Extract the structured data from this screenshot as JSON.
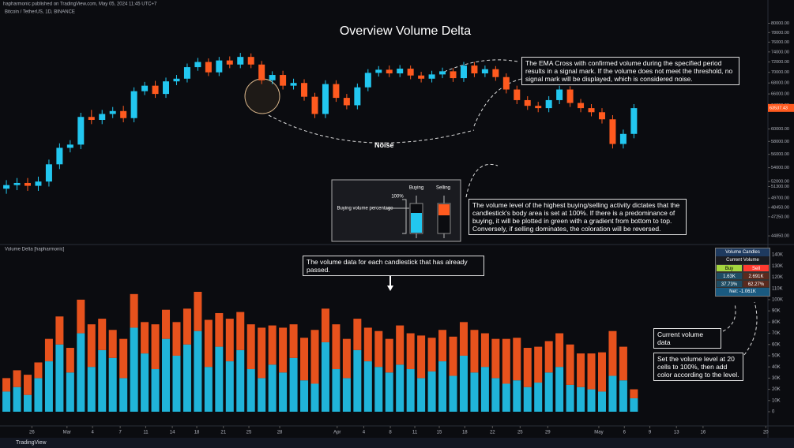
{
  "header": {
    "publisher": "hapharmonic published on TradingView.com, May 05, 2024 11:45 UTC+7"
  },
  "chart_data": [
    {
      "type": "candlestick",
      "title": "Overview Volume Delta",
      "subtitle": "Bitcoin / TetherUS, 1D, BINANCE",
      "up_color": "#22c7f0",
      "down_color": "#ff5a1f",
      "log_scale": true,
      "xlim": [
        -0.6,
        71.6
      ],
      "ylim": [
        44000,
        82000
      ],
      "yticks": [
        {
          "value": 80000,
          "label": "80000.00"
        },
        {
          "value": 78000,
          "label": "78000.00"
        },
        {
          "value": 76000,
          "label": "76000.00"
        },
        {
          "value": 74000,
          "label": "74000.00"
        },
        {
          "value": 72000,
          "label": "72000.00"
        },
        {
          "value": 70000,
          "label": "70000.00"
        },
        {
          "value": 68000,
          "label": "68000.00"
        },
        {
          "value": 66000,
          "label": "66000.00"
        },
        {
          "value": 64000,
          "label": "64000.00"
        },
        {
          "value": 60000,
          "label": "60000.00"
        },
        {
          "value": 58000,
          "label": "58000.00"
        },
        {
          "value": 56000,
          "label": "56000.00"
        },
        {
          "value": 54000,
          "label": "54000.00"
        },
        {
          "value": 52000,
          "label": "52000.00"
        },
        {
          "value": 51300,
          "label": "51300.00"
        },
        {
          "value": 49700,
          "label": "49700.00"
        },
        {
          "value": 48450,
          "label": "48450.00"
        },
        {
          "value": 47250,
          "label": "47250.00"
        },
        {
          "value": 44850,
          "label": "44850.00"
        }
      ],
      "last_price": 63537.43,
      "open": [
        51000,
        51500,
        51800,
        51400,
        52000,
        54500,
        57000,
        57500,
        62000,
        61500,
        62500,
        63000,
        61800,
        66500,
        67500,
        66000,
        68300,
        68800,
        71000,
        72000,
        70000,
        72300,
        71500,
        73000,
        71500,
        68500,
        69500,
        67500,
        68000,
        65500,
        62500,
        67800,
        65300,
        64000,
        67200,
        69900,
        70500,
        69800,
        70700,
        69400,
        68800,
        69600,
        70200,
        68900,
        71300,
        69800,
        70600,
        69100,
        66800,
        64900,
        63900,
        63500,
        64900,
        66800,
        64400,
        63500,
        62800,
        61600,
        57600,
        59200
      ],
      "high": [
        52200,
        52500,
        52500,
        52700,
        55200,
        57700,
        58200,
        62700,
        63200,
        63200,
        63700,
        63900,
        67200,
        68200,
        68400,
        69000,
        69500,
        71700,
        72800,
        72700,
        73000,
        73100,
        73800,
        73700,
        72200,
        70200,
        70300,
        68800,
        68700,
        66200,
        68500,
        68500,
        66000,
        67900,
        70600,
        71200,
        71300,
        71400,
        71300,
        70100,
        70300,
        70900,
        70800,
        72000,
        72000,
        71300,
        71200,
        69800,
        67500,
        65600,
        64600,
        65600,
        67500,
        67400,
        65100,
        64200,
        63500,
        62300,
        59900,
        64200
      ],
      "low": [
        50300,
        50800,
        50700,
        50700,
        51300,
        53800,
        56300,
        56800,
        60800,
        60800,
        61800,
        61100,
        61100,
        65800,
        65300,
        65300,
        67600,
        68100,
        70300,
        69300,
        69300,
        70800,
        70800,
        70800,
        67800,
        67800,
        66800,
        66800,
        64800,
        61800,
        61800,
        64600,
        63300,
        63300,
        66500,
        69200,
        69100,
        69100,
        68700,
        68100,
        68100,
        68900,
        68200,
        68200,
        69100,
        69100,
        68400,
        66100,
        64200,
        63200,
        62800,
        62800,
        64200,
        63700,
        62800,
        62100,
        60900,
        56900,
        56900,
        58500
      ],
      "close": [
        51500,
        51800,
        51400,
        52000,
        54500,
        57000,
        57500,
        62000,
        61500,
        62500,
        63000,
        61800,
        66500,
        67500,
        66000,
        68300,
        68800,
        71000,
        72000,
        70000,
        72300,
        71500,
        73000,
        71500,
        68500,
        69500,
        67500,
        68000,
        65500,
        62500,
        67800,
        65300,
        64000,
        67200,
        69900,
        70500,
        69800,
        70700,
        69400,
        68800,
        69600,
        70200,
        68900,
        71300,
        69800,
        70600,
        69100,
        66800,
        64900,
        63900,
        63500,
        64900,
        66800,
        64400,
        63500,
        62800,
        61600,
        57600,
        59200,
        63500
      ]
    },
    {
      "type": "stacked_bar",
      "title": "Volume Delta [hapharmonic]",
      "xlim": [
        -0.6,
        71.6
      ],
      "ylim": [
        0,
        145000
      ],
      "xticks": [
        {
          "value": 2.4,
          "label": "26"
        },
        {
          "value": 5.7,
          "label": "Mar"
        },
        {
          "value": 8.1,
          "label": "4"
        },
        {
          "value": 10.7,
          "label": "7"
        },
        {
          "value": 13.1,
          "label": "11"
        },
        {
          "value": 15.6,
          "label": "14"
        },
        {
          "value": 17.9,
          "label": "18"
        },
        {
          "value": 20.4,
          "label": "21"
        },
        {
          "value": 22.8,
          "label": "25"
        },
        {
          "value": 25.7,
          "label": "28"
        },
        {
          "value": 31.1,
          "label": "Apr"
        },
        {
          "value": 33.6,
          "label": "4"
        },
        {
          "value": 36.1,
          "label": "8"
        },
        {
          "value": 38.4,
          "label": "11"
        },
        {
          "value": 40.7,
          "label": "15"
        },
        {
          "value": 43.1,
          "label": "18"
        },
        {
          "value": 45.7,
          "label": "22"
        },
        {
          "value": 48.3,
          "label": "25"
        },
        {
          "value": 50.9,
          "label": "29"
        },
        {
          "value": 55.7,
          "label": "May"
        },
        {
          "value": 58.1,
          "label": "6"
        },
        {
          "value": 60.5,
          "label": "9"
        },
        {
          "value": 63,
          "label": "13"
        },
        {
          "value": 65.5,
          "label": "16"
        },
        {
          "value": 71.4,
          "label": "20"
        }
      ],
      "yticks": [
        {
          "value": 140000,
          "label": "140K"
        },
        {
          "value": 130000,
          "label": "130K"
        },
        {
          "value": 120000,
          "label": "120K"
        },
        {
          "value": 110000,
          "label": "110K"
        },
        {
          "value": 100000,
          "label": "100K"
        },
        {
          "value": 90000,
          "label": "90K"
        },
        {
          "value": 80000,
          "label": "80K"
        },
        {
          "value": 70000,
          "label": "70K"
        },
        {
          "value": 60000,
          "label": "60K"
        },
        {
          "value": 50000,
          "label": "50K"
        },
        {
          "value": 40000,
          "label": "40K"
        },
        {
          "value": 30000,
          "label": "30K"
        },
        {
          "value": 20000,
          "label": "20K"
        },
        {
          "value": 10000,
          "label": "10K"
        },
        0
      ],
      "series": [
        {
          "color": "#22c7f0",
          "values": [
            18000,
            22000,
            15000,
            30000,
            45000,
            60000,
            35000,
            70000,
            40000,
            55000,
            48000,
            30000,
            75000,
            52000,
            38000,
            65000,
            50000,
            60000,
            72000,
            40000,
            58000,
            45000,
            55000,
            38000,
            30000,
            42000,
            35000,
            48000,
            28000,
            25000,
            62000,
            38000,
            30000,
            55000,
            45000,
            40000,
            35000,
            42000,
            38000,
            30000,
            36000,
            45000,
            32000,
            50000,
            35000,
            40000,
            30000,
            25000,
            28000,
            22000,
            26000,
            35000,
            40000,
            24000,
            22000,
            20000,
            18000,
            32000,
            28000,
            12000
          ]
        },
        {
          "color": "#ff5a1f",
          "values": [
            12000,
            15000,
            18000,
            14000,
            20000,
            25000,
            22000,
            30000,
            38000,
            28000,
            25000,
            35000,
            30000,
            28000,
            40000,
            26000,
            30000,
            32000,
            35000,
            42000,
            30000,
            38000,
            34000,
            40000,
            45000,
            35000,
            40000,
            30000,
            38000,
            48000,
            30000,
            40000,
            35000,
            28000,
            30000,
            32000,
            30000,
            35000,
            32000,
            38000,
            30000,
            28000,
            35000,
            30000,
            38000,
            30000,
            35000,
            40000,
            38000,
            35000,
            32000,
            28000,
            30000,
            36000,
            30000,
            32000,
            35000,
            40000,
            30000,
            8000
          ]
        }
      ]
    }
  ],
  "annotations": {
    "ema_note": "The EMA Cross with confirmed volume during the specified period results in a signal mark. If the volume does not meet the threshold, no signal mark will be displayed, which is considered noise.",
    "noise": "Noise",
    "inset": {
      "buying": "Buying",
      "selling": "Selling",
      "percent": "100%",
      "caption": "Buying volume percentage"
    },
    "body_note": "The volume level of the highest buying/selling activity dictates that the candlestick's body area is set at 100%. If there is a predominance of buying, it will be plotted in green with a gradient from bottom to top. Conversely, if selling dominates, the coloration will be reversed.",
    "volume_note": "The volume data for each candlestick that has already passed.",
    "current_note": "Current volume data",
    "level_note": "Set the volume level at 20 cells to 100%, then add color according to the level."
  },
  "volume_table": {
    "title": "Volume Candles",
    "subtitle": "Current Volume",
    "buy": "Buy",
    "sell": "Sell",
    "buy_value": "1.63K",
    "sell_value": "2.691K",
    "buy_pct": "37.73%",
    "sell_pct": "62.27%",
    "net": "Net: -1.061K"
  },
  "footer": {
    "brand": "TradingView"
  }
}
